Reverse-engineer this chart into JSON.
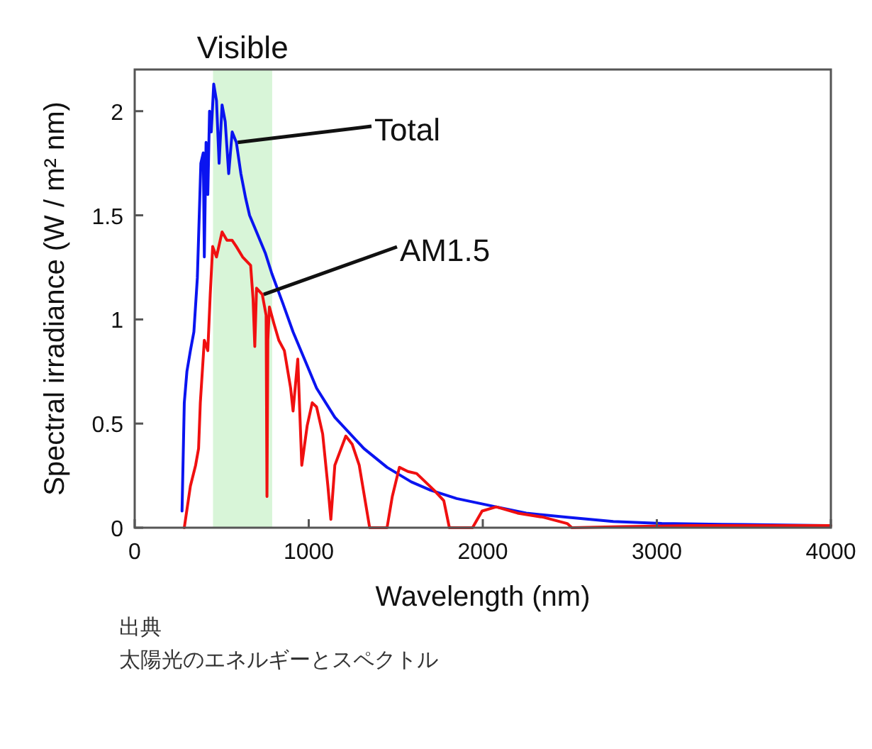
{
  "chart_data": {
    "type": "line",
    "xlabel": "Wavelength (nm)",
    "ylabel": "Spectral irradiance (W / m² nm)",
    "xlim": [
      0,
      4000
    ],
    "ylim": [
      0,
      2.2
    ],
    "xticks": [
      0,
      1000,
      2000,
      3000,
      4000
    ],
    "yticks": [
      0,
      0.5,
      1,
      1.5,
      2
    ],
    "grid": false,
    "marker": "none",
    "line_style": "solid",
    "bands": [
      {
        "axis": "x",
        "from": 450,
        "to": 790,
        "label": "Visible",
        "color": "#d8f5d8"
      }
    ],
    "series": [
      {
        "color": "#0a14f0",
        "x": [
          272,
          285,
          300,
          320,
          340,
          360,
          380,
          394,
          400,
          410,
          420,
          430,
          440,
          454,
          470,
          485,
          502,
          520,
          540,
          560,
          584,
          610,
          638,
          660,
          700,
          750,
          788,
          850,
          910,
          980,
          1045,
          1150,
          1317,
          1450,
          1589,
          1700,
          1850,
          2077,
          2250,
          2485,
          2750,
          3028,
          3500,
          3975
        ],
        "values": [
          0.08,
          0.6,
          0.75,
          0.85,
          0.94,
          1.2,
          1.75,
          1.8,
          1.3,
          1.85,
          1.6,
          2.0,
          1.9,
          2.13,
          2.05,
          1.75,
          2.03,
          1.95,
          1.7,
          1.9,
          1.85,
          1.7,
          1.58,
          1.5,
          1.42,
          1.32,
          1.22,
          1.08,
          0.94,
          0.8,
          0.67,
          0.53,
          0.38,
          0.29,
          0.22,
          0.18,
          0.14,
          0.1,
          0.07,
          0.05,
          0.03,
          0.02,
          0.015,
          0.01
        ]
      },
      {
        "color": "#f01010",
        "x": [
          285,
          320,
          350,
          367,
          377,
          400,
          420,
          434,
          448,
          470,
          502,
          530,
          560,
          584,
          620,
          666,
          680,
          690,
          700,
          733,
          755,
          760,
          765,
          774,
          800,
          828,
          860,
          896,
          910,
          937,
          960,
          991,
          1020,
          1045,
          1080,
          1110,
          1127,
          1150,
          1213,
          1250,
          1290,
          1330,
          1350,
          1450,
          1480,
          1521,
          1570,
          1620,
          1670,
          1720,
          1776,
          1808,
          1941,
          1996,
          2077,
          2200,
          2350,
          2485,
          2512,
          2800,
          3200,
          3600,
          4000
        ],
        "values": [
          0,
          0.2,
          0.3,
          0.38,
          0.6,
          0.9,
          0.85,
          1.12,
          1.35,
          1.3,
          1.42,
          1.38,
          1.38,
          1.35,
          1.3,
          1.26,
          1.1,
          0.87,
          1.15,
          1.12,
          1.02,
          0.15,
          0.9,
          1.06,
          0.98,
          0.9,
          0.85,
          0.67,
          0.56,
          0.81,
          0.3,
          0.49,
          0.6,
          0.58,
          0.45,
          0.2,
          0.04,
          0.3,
          0.44,
          0.4,
          0.3,
          0.1,
          0,
          0,
          0.15,
          0.29,
          0.27,
          0.26,
          0.22,
          0.18,
          0.13,
          0,
          0,
          0.08,
          0.1,
          0.07,
          0.05,
          0.02,
          0,
          0.005,
          0.01,
          0.01,
          0.01
        ]
      }
    ],
    "annotations": [
      {
        "text": "Total",
        "x": 584,
        "y": 1.85
      },
      {
        "text": "AM1.5",
        "x": 733,
        "y": 1.12
      },
      "出典",
      "太陽光のエネルギーとスペクトル"
    ]
  }
}
